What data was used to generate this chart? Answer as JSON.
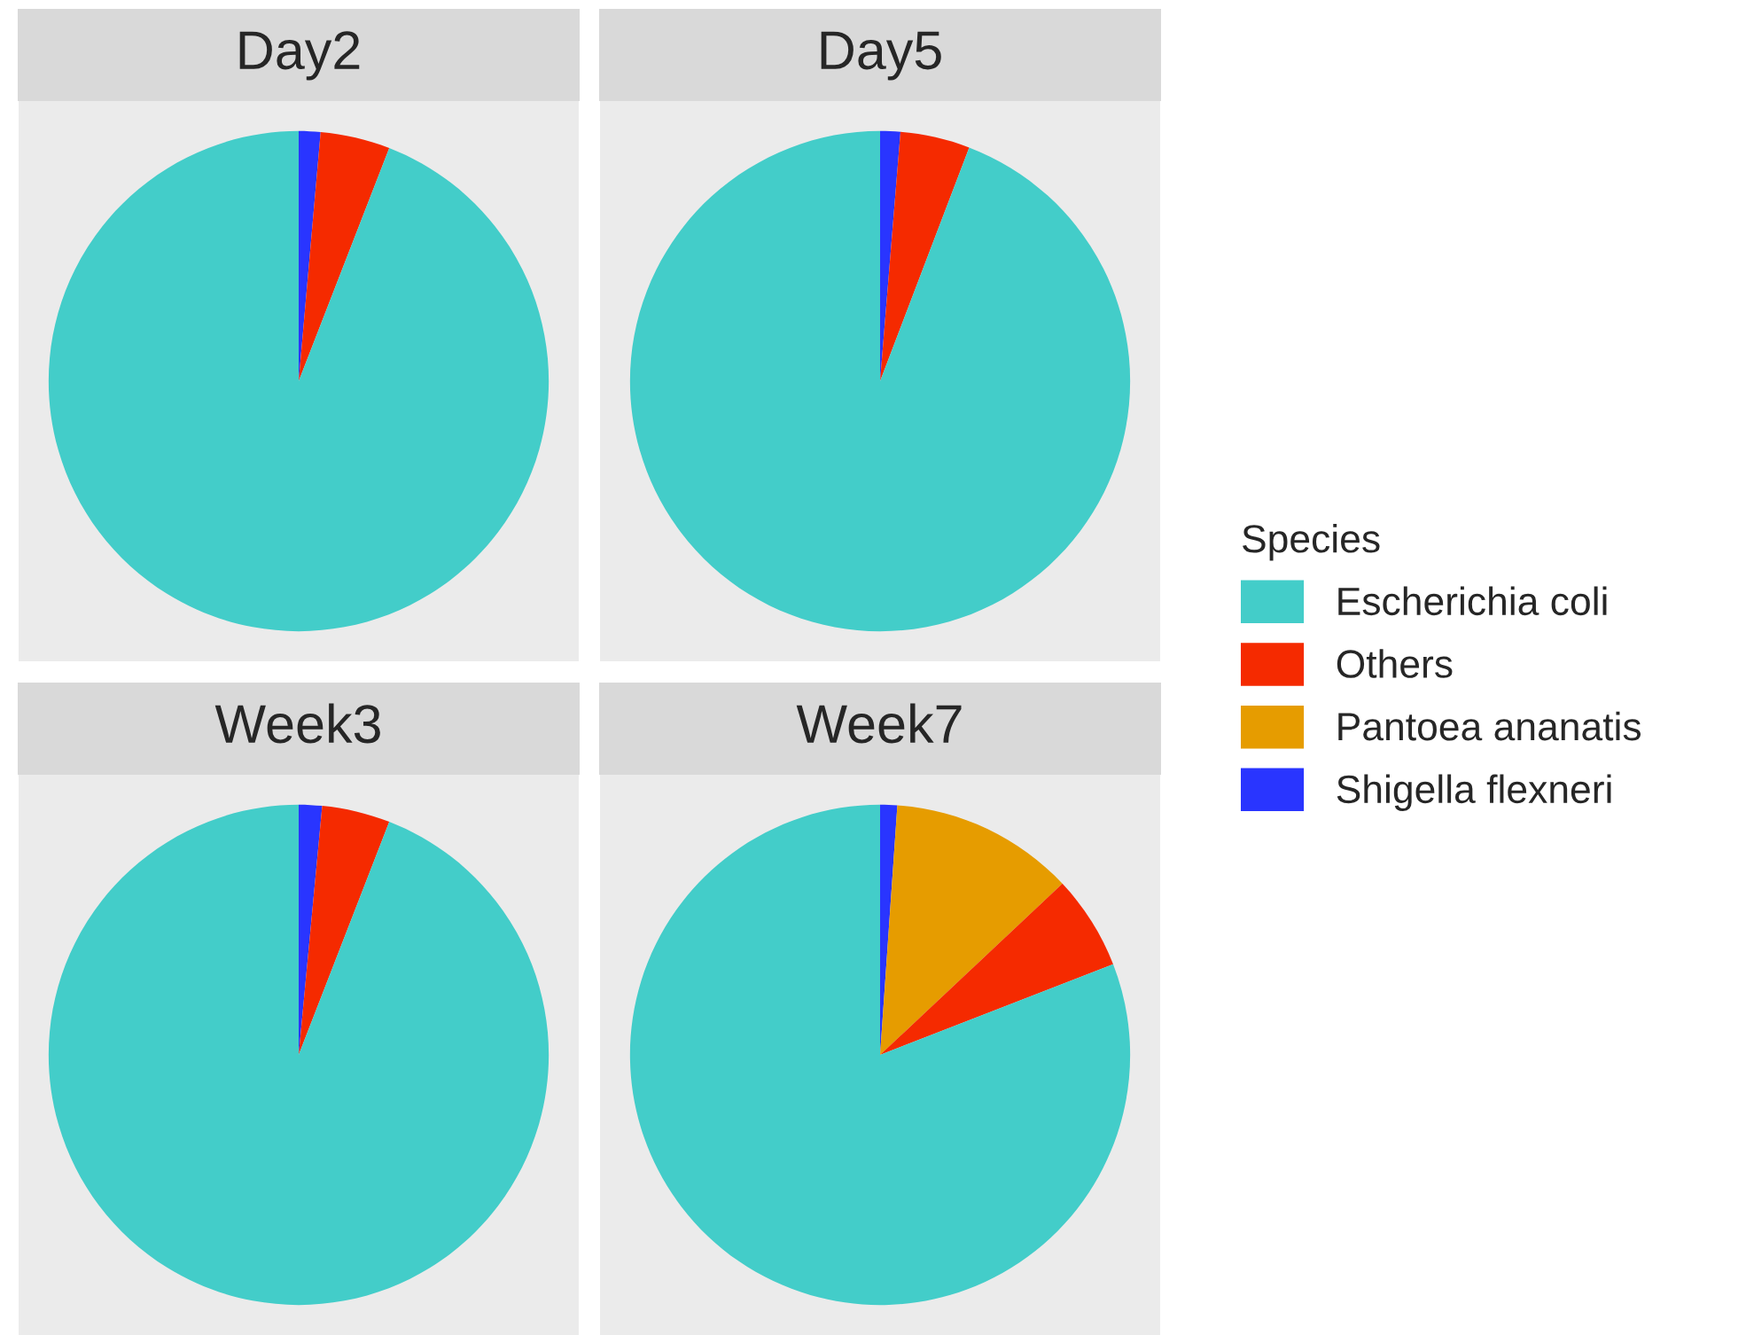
{
  "chart_data": [
    {
      "type": "pie",
      "title": "Day2",
      "categories": [
        "Escherichia coli",
        "Others",
        "Pantoea ananatis",
        "Shigella flexneri"
      ],
      "values": [
        94.1,
        4.5,
        0,
        1.4
      ],
      "colors": [
        "#43cdc9",
        "#f52a00",
        "#e69c00",
        "#2935ff"
      ],
      "legend": "right",
      "legend_title": "Species"
    },
    {
      "type": "pie",
      "title": "Day5",
      "categories": [
        null,
        null,
        null,
        null
      ],
      "values": [
        94.2,
        4.5,
        0,
        1.3
      ],
      "colors": [
        "#43cdc9",
        "#f52a00",
        "#e69c00",
        "#2935ff"
      ]
    },
    {
      "type": "pie",
      "title": "Week3",
      "categories": [
        null,
        null,
        null,
        null
      ],
      "values": [
        94.1,
        4.4,
        0,
        1.5
      ],
      "colors": [
        "#43cdc9",
        "#f52a00",
        "#e69c00",
        "#2935ff"
      ]
    },
    {
      "type": "pie",
      "title": "Week7",
      "categories": [
        null,
        null,
        null,
        null
      ],
      "values": [
        80.9,
        6.1,
        11.9,
        1.1
      ],
      "colors": [
        "#43cdc9",
        "#f52a00",
        "#e69c00",
        "#2935ff"
      ]
    }
  ]
}
